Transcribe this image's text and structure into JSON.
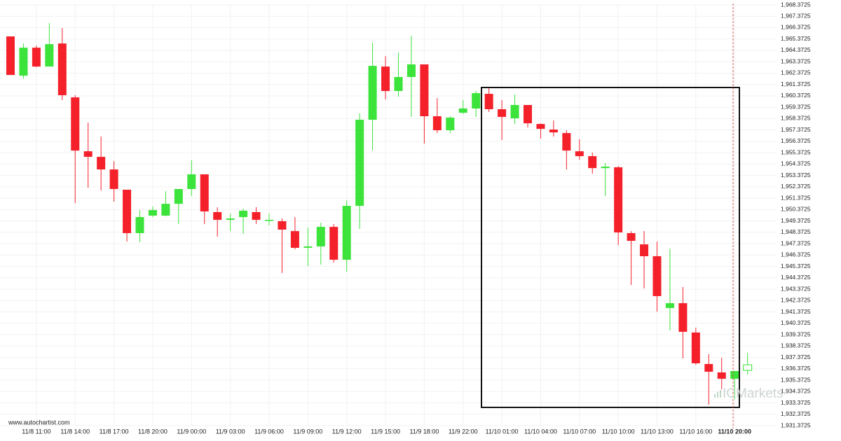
{
  "chart_data": {
    "type": "candlestick",
    "source": "www.autochartist.com",
    "watermark": "ICMarkets",
    "up_color": "#3be33b",
    "down_color": "#f4212b",
    "grid": true,
    "hollow_last": true,
    "categories": [
      null,
      null,
      "11/8 11:00",
      null,
      null,
      "11/8 14:00",
      null,
      null,
      "11/8 17:00",
      null,
      null,
      "11/8 20:00",
      null,
      null,
      "11/9 00:00",
      null,
      null,
      "11/9 03:00",
      null,
      null,
      "11/9 06:00",
      null,
      null,
      "11/9 09:00",
      null,
      null,
      "11/9 12:00",
      null,
      null,
      "11/9 15:00",
      null,
      null,
      "11/9 18:00",
      null,
      null,
      "11/9 22:00",
      null,
      null,
      "11/10 01:00",
      null,
      null,
      "11/10 04:00",
      null,
      null,
      "11/10 07:00",
      null,
      null,
      "11/10 10:00",
      null,
      null,
      "11/10 13:00",
      null,
      null,
      "11/10 16:00",
      null,
      null,
      "11/10 20:00",
      null
    ],
    "open": [
      1965.6,
      1962.15,
      1964.61,
      1962.95,
      1964.98,
      1960.24,
      1955.5,
      1955.01,
      1953.9,
      1952.12,
      1948.3,
      1949.84,
      1949.84,
      1950.88,
      1952.18,
      1953.47,
      1950.15,
      1949.47,
      1949.71,
      1950.15,
      1949.47,
      1949.35,
      1948.48,
      1947.01,
      1947.13,
      1948.85,
      1945.96,
      1950.7,
      1958.27,
      1962.95,
      1960.8,
      1962.03,
      1963.14,
      1958.58,
      1957.35,
      1958.89,
      1959.26,
      1960.55,
      1959.2,
      1958.4,
      1959.57,
      1957.9,
      1957.41,
      1957.1,
      1955.5,
      1955.07,
      1954.02,
      1954.09,
      1948.3,
      1947.31,
      1946.27,
      1941.71,
      1942.14,
      1939.56,
      1936.79,
      1936.05,
      1935.49,
      1936.23
    ],
    "high": [
      1965.6,
      1964.98,
      1964.8,
      1966.77,
      1966.34,
      1960.43,
      1958.03,
      1956.79,
      1954.64,
      1952.12,
      1950.33,
      1950.64,
      1951.99,
      1952.18,
      1954.7,
      1953.47,
      1950.58,
      1950.02,
      1950.45,
      1950.58,
      1950.02,
      1949.59,
      1949.71,
      1948.79,
      1949.22,
      1949.1,
      1951.19,
      1958.83,
      1965.04,
      1963.87,
      1964.18,
      1965.66,
      1963.14,
      1960.18,
      1958.58,
      1960.0,
      1960.8,
      1961.04,
      1960.0,
      1960.49,
      1959.57,
      1957.96,
      1958.21,
      1957.35,
      1956.55,
      1955.38,
      1954.46,
      1954.21,
      1948.48,
      1948.48,
      1947.56,
      1946.94,
      1943.56,
      1939.99,
      1937.65,
      1937.34,
      1936.17,
      1937.77
    ],
    "low": [
      1962.21,
      1961.9,
      1962.89,
      1962.95,
      1960.0,
      1950.95,
      1952.3,
      1952.05,
      1951.07,
      1947.56,
      1947.5,
      1949.71,
      1949.78,
      1949.1,
      1951.56,
      1949.1,
      1947.99,
      1948.48,
      1948.24,
      1949.1,
      1948.98,
      1944.79,
      1946.88,
      1945.41,
      1945.53,
      1945.71,
      1944.91,
      1948.67,
      1955.56,
      1960.06,
      1960.3,
      1958.52,
      1956.18,
      1957.1,
      1957.1,
      1958.76,
      1958.52,
      1958.95,
      1956.49,
      1957.9,
      1957.6,
      1956.61,
      1956.79,
      1953.9,
      1954.76,
      1953.53,
      1951.56,
      1947.25,
      1943.74,
      1943.44,
      1941.4,
      1939.74,
      1937.28,
      1936.72,
      1933.22,
      1934.57,
      1933.71,
      1935.86
    ],
    "close": [
      1962.21,
      1964.61,
      1962.95,
      1964.92,
      1960.43,
      1955.56,
      1955.01,
      1953.9,
      1952.18,
      1948.3,
      1949.71,
      1950.33,
      1950.88,
      1952.18,
      1953.47,
      1950.21,
      1949.47,
      1949.59,
      1950.27,
      1949.47,
      1949.47,
      1948.61,
      1947.01,
      1947.13,
      1948.85,
      1945.96,
      1950.7,
      1958.27,
      1963.01,
      1960.8,
      1962.03,
      1963.14,
      1958.58,
      1957.35,
      1958.46,
      1959.26,
      1960.61,
      1959.2,
      1958.52,
      1959.57,
      1957.96,
      1957.47,
      1957.16,
      1955.56,
      1955.07,
      1954.02,
      1954.15,
      1948.36,
      1947.62,
      1946.27,
      1942.76,
      1942.14,
      1939.62,
      1936.85,
      1936.11,
      1935.49,
      1936.17,
      1936.72
    ],
    "ylim": [
      1931.3725,
      1968.3725
    ],
    "yticks": [
      {
        "value": 1931.3725,
        "label": "1,931.3725"
      },
      {
        "value": 1932.3725,
        "label": "1,932.3725"
      },
      {
        "value": 1933.3725,
        "label": "1,933.3725"
      },
      {
        "value": 1934.3725,
        "label": "1,934.3725"
      },
      {
        "value": 1935.3725,
        "label": "1,935.3725"
      },
      {
        "value": 1936.3725,
        "label": "1,936.3725"
      },
      {
        "value": 1937.3725,
        "label": "1,937.3725"
      },
      {
        "value": 1938.3725,
        "label": "1,938.3725"
      },
      {
        "value": 1939.3725,
        "label": "1,939.3725"
      },
      {
        "value": 1940.3725,
        "label": "1,940.3725"
      },
      {
        "value": 1941.3725,
        "label": "1,941.3725"
      },
      {
        "value": 1942.3725,
        "label": "1,942.3725"
      },
      {
        "value": 1943.3725,
        "label": "1,943.3725"
      },
      {
        "value": 1944.3725,
        "label": "1,944.3725"
      },
      {
        "value": 1945.3725,
        "label": "1,945.3725"
      },
      {
        "value": 1946.3725,
        "label": "1,946.3725"
      },
      {
        "value": 1947.3725,
        "label": "1,947.3725"
      },
      {
        "value": 1948.3725,
        "label": "1,948.3725"
      },
      {
        "value": 1949.3725,
        "label": "1,949.3725"
      },
      {
        "value": 1950.3725,
        "label": "1,950.3725"
      },
      {
        "value": 1951.3725,
        "label": "1,951.3725"
      },
      {
        "value": 1952.3725,
        "label": "1,952.3725"
      },
      {
        "value": 1953.3725,
        "label": "1,953.3725"
      },
      {
        "value": 1954.3725,
        "label": "1,954.3725"
      },
      {
        "value": 1955.3725,
        "label": "1,955.3725"
      },
      {
        "value": 1956.3725,
        "label": "1,956.3725"
      },
      {
        "value": 1957.3725,
        "label": "1,957.3725"
      },
      {
        "value": 1958.3725,
        "label": "1,958.3725"
      },
      {
        "value": 1959.3725,
        "label": "1,959.3725"
      },
      {
        "value": 1960.3725,
        "label": "1,960.3725"
      },
      {
        "value": 1961.3725,
        "label": "1,961.3725"
      },
      {
        "value": 1962.3725,
        "label": "1,962.3725"
      },
      {
        "value": 1963.3725,
        "label": "1,963.3725"
      },
      {
        "value": 1964.3725,
        "label": "1,964.3725"
      },
      {
        "value": 1965.3725,
        "label": "1,965.3725"
      },
      {
        "value": 1966.3725,
        "label": "1,966.3725"
      },
      {
        "value": 1967.3725,
        "label": "1,967.3725"
      },
      {
        "value": 1968.3725,
        "label": "1,968.3725"
      }
    ]
  }
}
